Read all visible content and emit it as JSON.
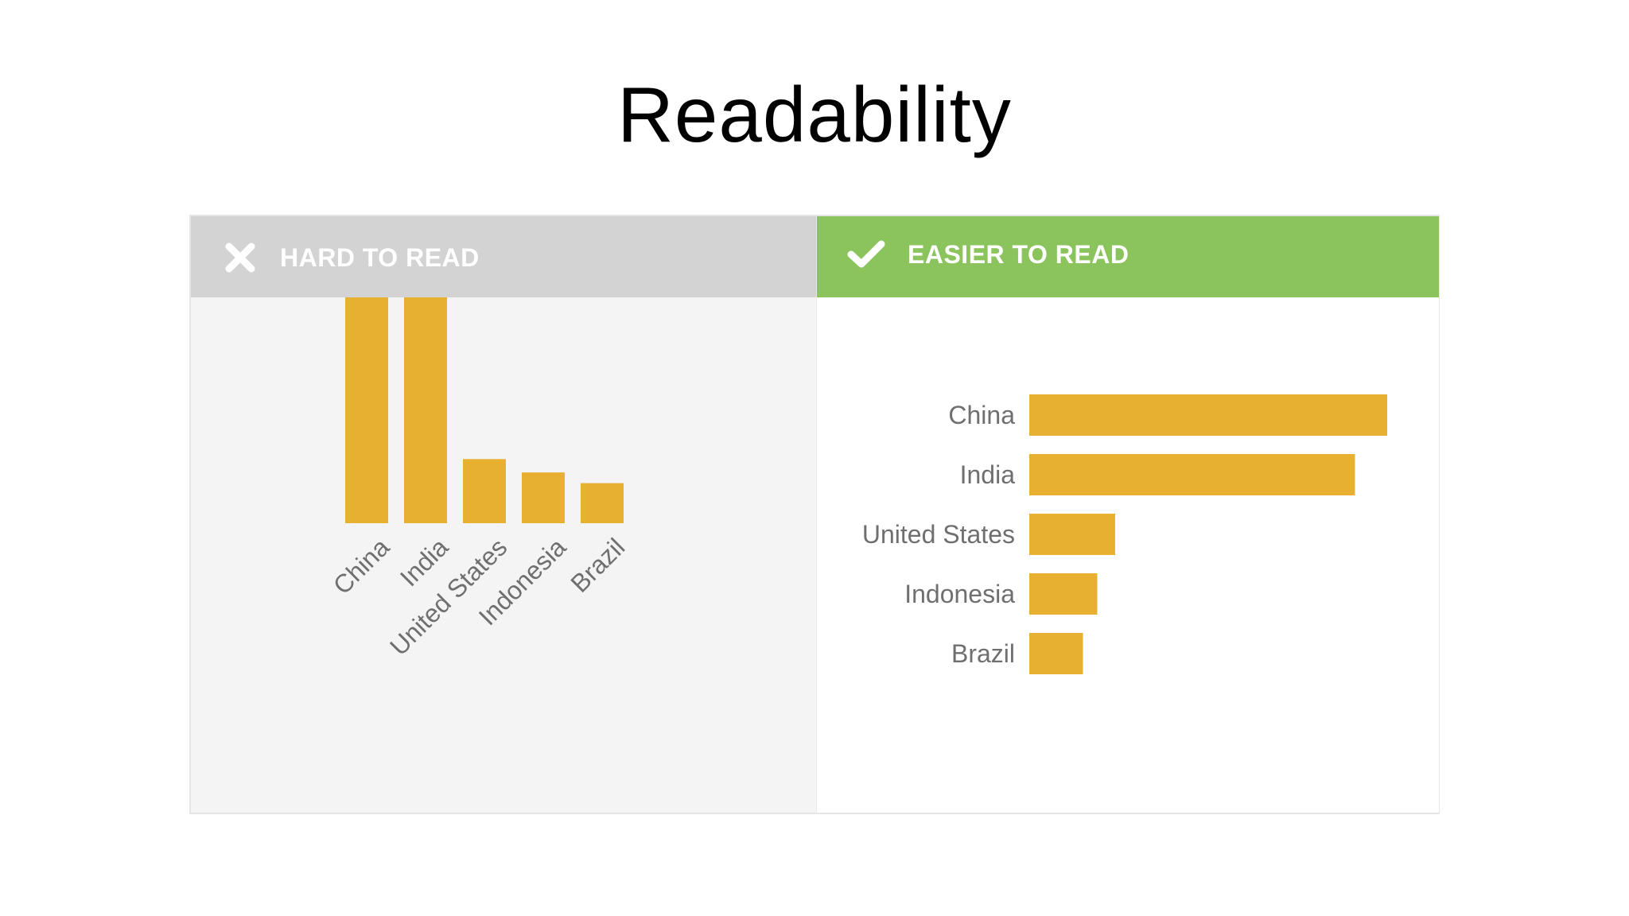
{
  "title": "Readability",
  "panels": {
    "hard": {
      "label": "HARD TO READ",
      "icon": "close-icon",
      "header_color": "#d3d3d3"
    },
    "easy": {
      "label": "EASIER TO READ",
      "icon": "checkmark-icon",
      "header_color": "#8bc35c"
    }
  },
  "bar_color": "#e8b031",
  "chart_data": [
    {
      "type": "bar",
      "orientation": "vertical",
      "categories": [
        "China",
        "India",
        "United States",
        "Indonesia",
        "Brazil"
      ],
      "values": [
        100,
        91,
        24,
        19,
        15
      ],
      "ylim": [
        0,
        100
      ],
      "grid": false,
      "label_rotation": -45
    },
    {
      "type": "bar",
      "orientation": "horizontal",
      "categories": [
        "China",
        "India",
        "United States",
        "Indonesia",
        "Brazil"
      ],
      "values": [
        100,
        91,
        24,
        19,
        15
      ],
      "xlim": [
        0,
        100
      ],
      "grid": false
    }
  ]
}
